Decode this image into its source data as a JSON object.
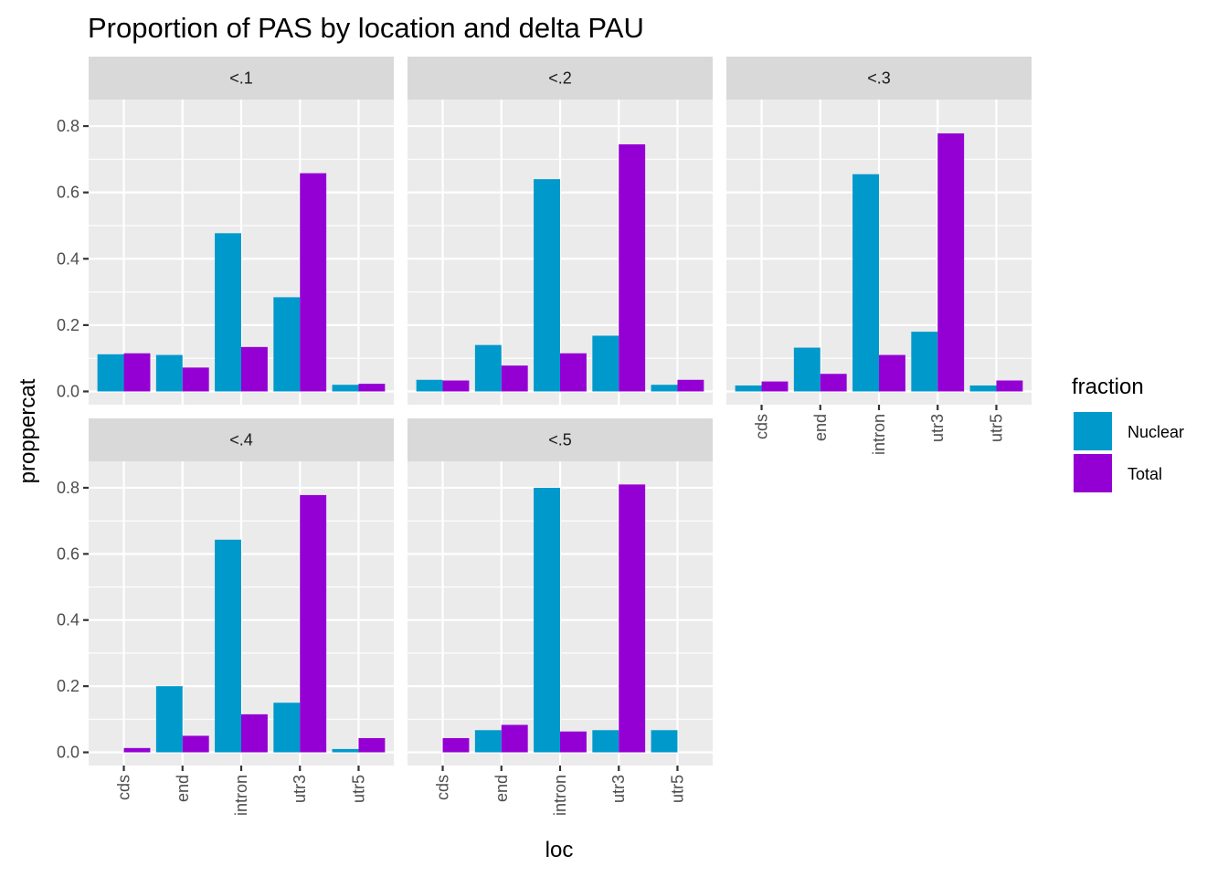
{
  "chart_data": {
    "type": "bar",
    "title": "Proportion of PAS by location and delta PAU",
    "xlabel": "loc",
    "ylabel": "proppercat",
    "ylim": [
      -0.04,
      0.88
    ],
    "yticks": [
      0.0,
      0.2,
      0.4,
      0.6,
      0.8
    ],
    "ytick_labels": [
      "0.0",
      "0.2",
      "0.4",
      "0.6",
      "0.8"
    ],
    "categories": [
      "cds",
      "end",
      "intron",
      "utr3",
      "utr5"
    ],
    "legend": {
      "title": "fraction",
      "position": "right",
      "items": [
        {
          "name": "Nuclear",
          "color": "#0099CC"
        },
        {
          "name": "Total",
          "color": "#9400D3"
        }
      ]
    },
    "panels": [
      {
        "label": "<.1",
        "series": [
          {
            "name": "Nuclear",
            "values": [
              0.112,
              0.11,
              0.477,
              0.284,
              0.02
            ]
          },
          {
            "name": "Total",
            "values": [
              0.115,
              0.072,
              0.134,
              0.658,
              0.023
            ]
          }
        ]
      },
      {
        "label": "<.2",
        "series": [
          {
            "name": "Nuclear",
            "values": [
              0.035,
              0.14,
              0.64,
              0.168,
              0.02
            ]
          },
          {
            "name": "Total",
            "values": [
              0.033,
              0.078,
              0.115,
              0.745,
              0.035
            ]
          }
        ]
      },
      {
        "label": "<.3",
        "series": [
          {
            "name": "Nuclear",
            "values": [
              0.018,
              0.132,
              0.655,
              0.18,
              0.018
            ]
          },
          {
            "name": "Total",
            "values": [
              0.03,
              0.053,
              0.11,
              0.778,
              0.033
            ]
          }
        ]
      },
      {
        "label": "<.4",
        "series": [
          {
            "name": "Nuclear",
            "values": [
              0.0,
              0.2,
              0.643,
              0.15,
              0.01
            ]
          },
          {
            "name": "Total",
            "values": [
              0.013,
              0.05,
              0.115,
              0.778,
              0.043
            ]
          }
        ]
      },
      {
        "label": "<.5",
        "series": [
          {
            "name": "Nuclear",
            "values": [
              0.0,
              0.067,
              0.8,
              0.067,
              0.067
            ]
          },
          {
            "name": "Total",
            "values": [
              0.043,
              0.083,
              0.063,
              0.81,
              0.0
            ]
          }
        ]
      }
    ]
  }
}
